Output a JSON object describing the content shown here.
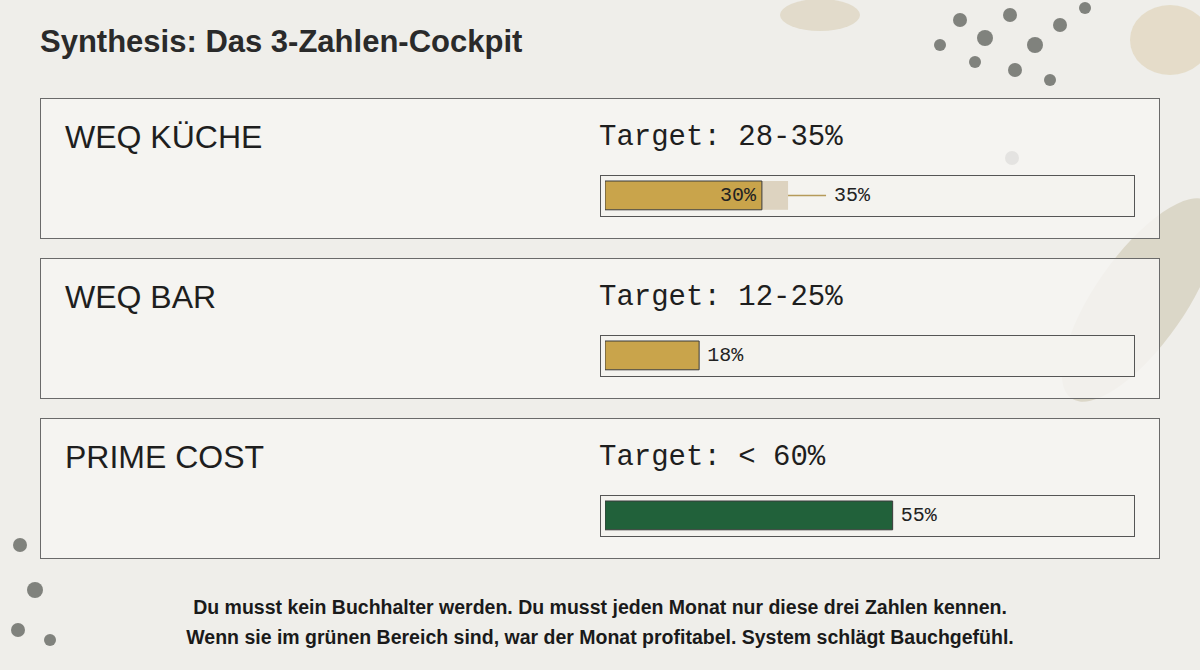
{
  "title": "Synthesis: Das 3-Zahlen-Cockpit",
  "chart_data": [
    {
      "type": "bar",
      "orientation": "horizontal",
      "title": "WEQ KÜCHE",
      "subtitle": "Target: 28-35%",
      "values": [
        30
      ],
      "value_labels": [
        "30%"
      ],
      "target": 35,
      "target_label": "35%",
      "color": "#c9a44b",
      "xlim": [
        0,
        100
      ],
      "tick_labels": false,
      "data_labels": true
    },
    {
      "type": "bar",
      "orientation": "horizontal",
      "title": "WEQ BAR",
      "subtitle": "Target: 12-25%",
      "values": [
        18
      ],
      "value_labels": [
        "18%"
      ],
      "color": "#c9a44b",
      "xlim": [
        0,
        100
      ],
      "tick_labels": false,
      "data_labels": true
    },
    {
      "type": "bar",
      "orientation": "horizontal",
      "title": "PRIME COST",
      "subtitle": "Target: < 60%",
      "values": [
        55
      ],
      "value_labels": [
        "55%"
      ],
      "color": "#21613a",
      "xlim": [
        0,
        100
      ],
      "tick_labels": false,
      "data_labels": true
    }
  ],
  "footer": [
    "Du musst kein Buchhalter werden. Du musst jeden Monat nur diese drei Zahlen kennen.",
    "Wenn sie im grünen Bereich sind, war der Monat profitabel. System schlägt Bauchgefühl."
  ]
}
